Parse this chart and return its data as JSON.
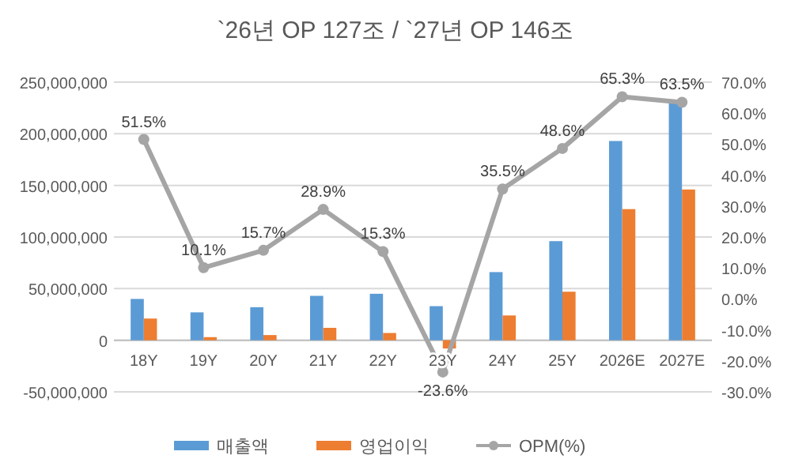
{
  "chart_data": {
    "type": "bar",
    "title": "`26년 OP 127조 / `27년 OP 146조",
    "categories": [
      "18Y",
      "19Y",
      "20Y",
      "21Y",
      "22Y",
      "23Y",
      "24Y",
      "25Y",
      "2026E",
      "2027E"
    ],
    "series": [
      {
        "name": "매출액",
        "color": "#5b9bd5",
        "values": [
          40000000,
          27000000,
          32000000,
          43000000,
          45000000,
          33000000,
          66000000,
          96000000,
          193000000,
          230000000
        ]
      },
      {
        "name": "영업이익",
        "color": "#ed7d31",
        "values": [
          21000000,
          3000000,
          5000000,
          12000000,
          7000000,
          -8000000,
          24000000,
          47000000,
          127000000,
          146000000
        ]
      },
      {
        "name": "OPM(%)",
        "type": "line",
        "axis": "y2",
        "color": "#a5a5a5",
        "marker": "circle",
        "data_labels": true,
        "value_labels": [
          "51.5%",
          "10.1%",
          "15.7%",
          "28.9%",
          "15.3%",
          "-23.6%",
          "35.5%",
          "48.6%",
          "65.3%",
          "63.5%"
        ],
        "values": [
          51.5,
          10.1,
          15.7,
          28.9,
          15.3,
          -23.6,
          35.5,
          48.6,
          65.3,
          63.5
        ]
      }
    ],
    "ylim": [
      -50000000,
      250000000
    ],
    "yticks": [
      {
        "value": -50000000,
        "label": "-50,000,000"
      },
      {
        "value": 0,
        "label": "0"
      },
      {
        "value": 50000000,
        "label": "50,000,000"
      },
      {
        "value": 100000000,
        "label": "100,000,000"
      },
      {
        "value": 150000000,
        "label": "150,000,000"
      },
      {
        "value": 200000000,
        "label": "200,000,000"
      },
      {
        "value": 250000000,
        "label": "250,000,000"
      }
    ],
    "y2lim": [
      -30,
      70
    ],
    "y2ticks": [
      {
        "value": -30,
        "label": "-30.0%"
      },
      {
        "value": -20,
        "label": "-20.0%"
      },
      {
        "value": -10,
        "label": "-10.0%"
      },
      {
        "value": 0,
        "label": "0.0%"
      },
      {
        "value": 10,
        "label": "10.0%"
      },
      {
        "value": 20,
        "label": "20.0%"
      },
      {
        "value": 30,
        "label": "30.0%"
      },
      {
        "value": 40,
        "label": "40.0%"
      },
      {
        "value": 50,
        "label": "50.0%"
      },
      {
        "value": 60,
        "label": "60.0%"
      },
      {
        "value": 70,
        "label": "70.0%"
      }
    ],
    "grid": "y",
    "legend": "bottom"
  }
}
